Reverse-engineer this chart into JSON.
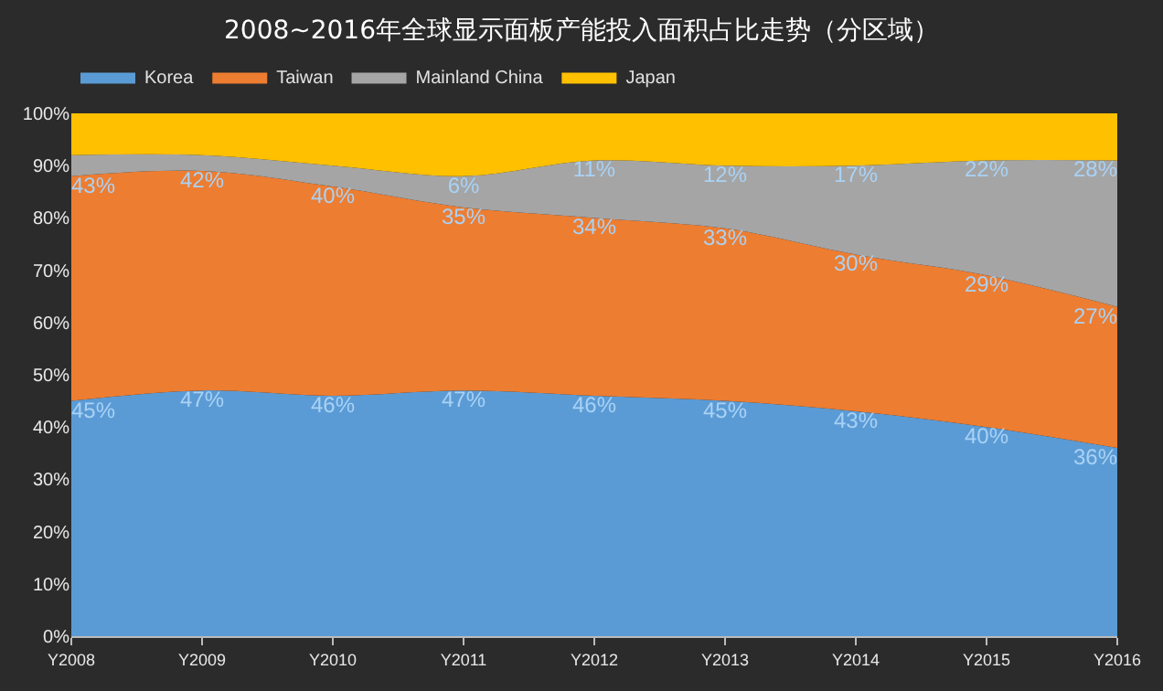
{
  "chart_data": {
    "type": "area",
    "stacked": true,
    "title": "2008~2016年全球显示面板产能投入面积占比走势（分区域）",
    "categories": [
      "Y2008",
      "Y2009",
      "Y2010",
      "Y2011",
      "Y2012",
      "Y2013",
      "Y2014",
      "Y2015",
      "Y2016"
    ],
    "series": [
      {
        "name": "Korea",
        "color": "#5b9bd5",
        "values": [
          45,
          47,
          46,
          47,
          46,
          45,
          43,
          40,
          36
        ],
        "value_labels": [
          "45%",
          "47%",
          "46%",
          "47%",
          "46%",
          "45%",
          "43%",
          "40%",
          "36%"
        ]
      },
      {
        "name": "Taiwan",
        "color": "#ed7d31",
        "values": [
          43,
          42,
          40,
          35,
          34,
          33,
          30,
          29,
          27
        ],
        "value_labels": [
          "43%",
          "42%",
          "40%",
          "35%",
          "34%",
          "33%",
          "30%",
          "29%",
          "27%"
        ]
      },
      {
        "name": "Mainland China",
        "color": "#a5a5a5",
        "values": [
          4,
          3,
          4,
          6,
          11,
          12,
          17,
          22,
          28
        ],
        "value_labels": [
          null,
          null,
          null,
          "6%",
          "11%",
          "12%",
          "17%",
          "22%",
          "28%"
        ]
      },
      {
        "name": "Japan",
        "color": "#ffc000",
        "values": [
          8,
          8,
          10,
          12,
          9,
          10,
          10,
          9,
          9
        ]
      }
    ],
    "ylim": [
      0,
      100
    ],
    "yticks": [
      {
        "value": 0,
        "label": "0%"
      },
      {
        "value": 10,
        "label": "10%"
      },
      {
        "value": 20,
        "label": "20%"
      },
      {
        "value": 30,
        "label": "30%"
      },
      {
        "value": 40,
        "label": "40%"
      },
      {
        "value": 50,
        "label": "50%"
      },
      {
        "value": 60,
        "label": "60%"
      },
      {
        "value": 70,
        "label": "70%"
      },
      {
        "value": 80,
        "label": "80%"
      },
      {
        "value": 90,
        "label": "90%"
      },
      {
        "value": 100,
        "label": "100%"
      }
    ],
    "grid": false,
    "legend": "top left"
  }
}
